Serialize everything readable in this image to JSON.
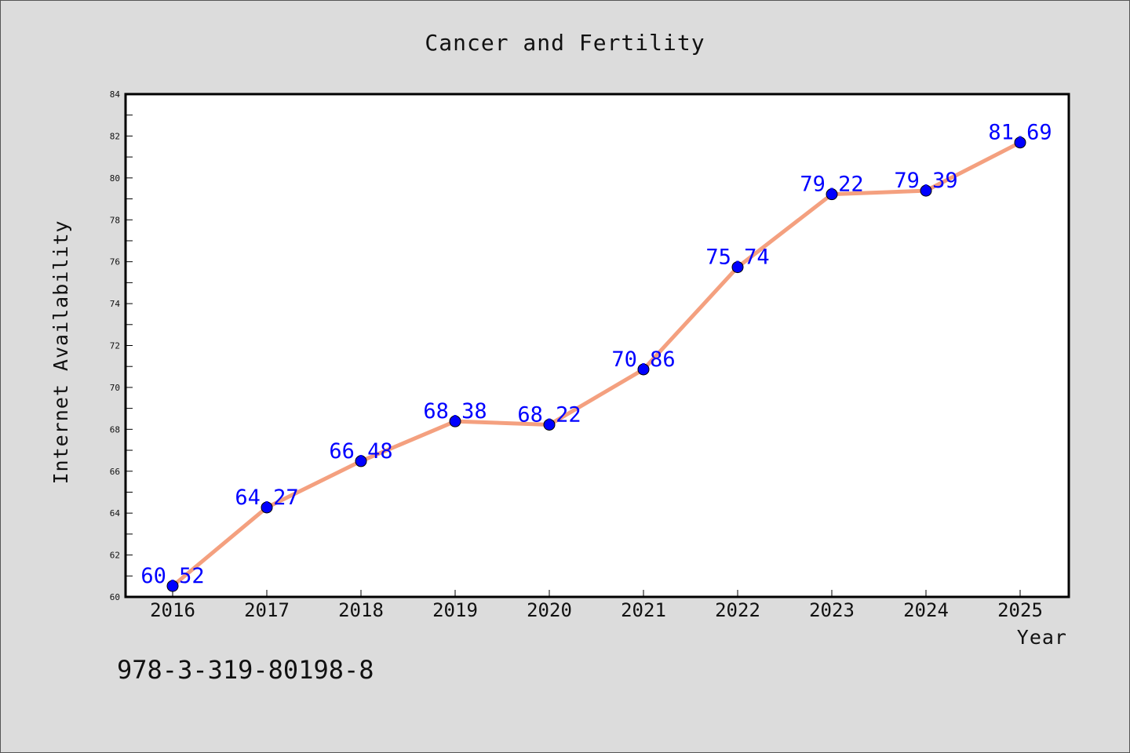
{
  "chart_data": {
    "type": "line",
    "title": "Cancer and Fertility",
    "xlabel": "Year",
    "ylabel": "Internet Availability",
    "categories": [
      "2016",
      "2017",
      "2018",
      "2019",
      "2020",
      "2021",
      "2022",
      "2023",
      "2024",
      "2025"
    ],
    "series": [
      {
        "values": [
          60.52,
          64.27,
          66.48,
          68.38,
          68.22,
          70.86,
          75.74,
          79.22,
          79.39,
          81.69
        ],
        "labels": [
          "60.52",
          "64.27",
          "66.48",
          "68.38",
          "68.22",
          "70.86",
          "75.74",
          "79.22",
          "79.39",
          "81.69"
        ]
      }
    ],
    "ylim": [
      60,
      84
    ],
    "yticks": [
      "60",
      "62",
      "64",
      "66",
      "68",
      "70",
      "72",
      "74",
      "76",
      "78",
      "80",
      "82",
      "84"
    ],
    "grid": false,
    "legend": "none",
    "colors": {
      "line": "#f4a07f",
      "marker": "#0000ff",
      "data_label": "#0000ff",
      "background": "#dcdcdc",
      "plot_background": "#ffffff"
    }
  },
  "footer": {
    "isbn": "978-3-319-80198-8"
  }
}
